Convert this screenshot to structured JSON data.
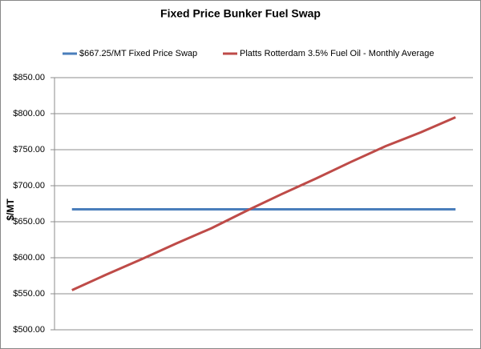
{
  "chart_data": {
    "type": "line",
    "title": "Fixed Price Bunker Fuel Swap",
    "y_label": "$/MT",
    "categories": [
      null,
      null,
      null,
      null,
      null,
      null,
      null,
      null,
      null,
      null,
      null,
      null
    ],
    "series": [
      {
        "name": "$667.25/MT Fixed Price Swap",
        "color": "#4a7ebb",
        "values": [
          667.25,
          667.25,
          667.25,
          667.25,
          667.25,
          667.25,
          667.25,
          667.25,
          667.25,
          667.25,
          667.25,
          667.25
        ]
      },
      {
        "name": "Platts Rotterdam 3.5% Fuel Oil - Monthly Average",
        "color": "#be4b48",
        "values": [
          555,
          577,
          598,
          620,
          641,
          665,
          688,
          710,
          733,
          755,
          774,
          795
        ]
      }
    ],
    "ylim": [
      500,
      850
    ],
    "yticks": [
      {
        "value": 500,
        "label": "$500.00"
      },
      {
        "value": 550,
        "label": "$550.00"
      },
      {
        "value": 600,
        "label": "$600.00"
      },
      {
        "value": 650,
        "label": "$650.00"
      },
      {
        "value": 700,
        "label": "$700.00"
      },
      {
        "value": 750,
        "label": "$750.00"
      },
      {
        "value": 800,
        "label": "$800.00"
      },
      {
        "value": 850,
        "label": "$850.00"
      }
    ],
    "grid": true
  }
}
